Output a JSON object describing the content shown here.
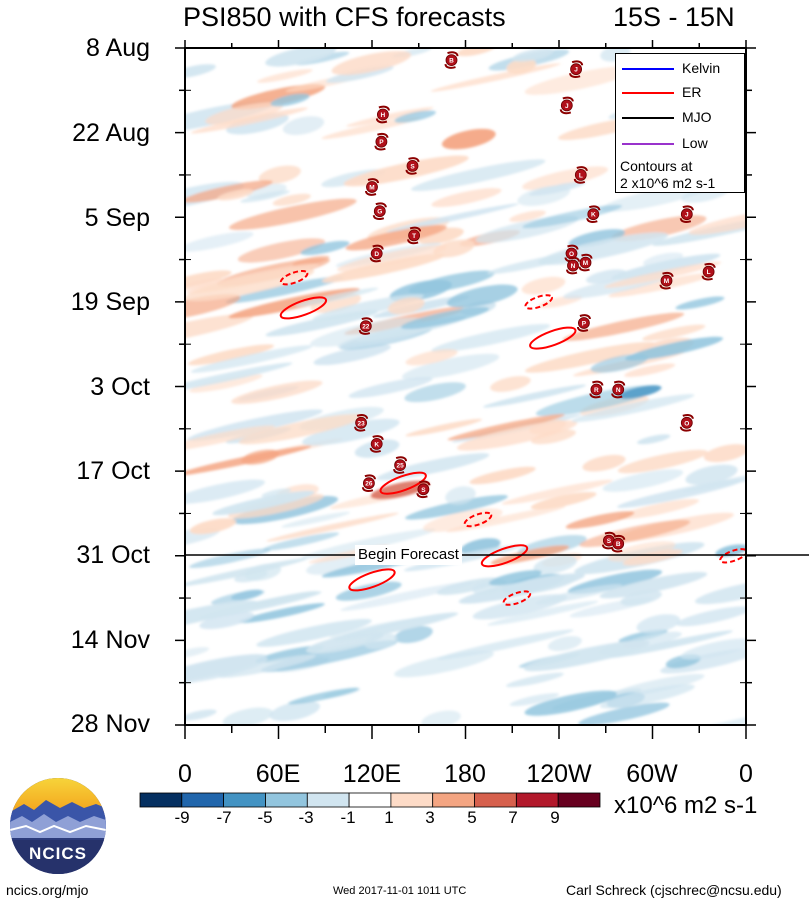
{
  "header": {
    "title": "PSI850 with CFS forecasts",
    "region": "15S - 15N"
  },
  "chart_data": {
    "type": "heatmap",
    "title": "PSI850 with CFS forecasts",
    "region": "15S - 15N",
    "ylabel_ticks": [
      "8 Aug",
      "22 Aug",
      "5 Sep",
      "19 Sep",
      "3 Oct",
      "17 Oct",
      "31 Oct",
      "14 Nov",
      "28 Nov"
    ],
    "xlabel_ticks": [
      "0",
      "60E",
      "120E",
      "180",
      "120W",
      "60W",
      "0"
    ],
    "xlim_deg_east": [
      0,
      360
    ],
    "time_range": [
      "8 Aug",
      "28 Nov"
    ],
    "forecast_start": "31 Oct",
    "forecast_label": "Begin Forecast",
    "colorbar": {
      "levels": [
        "-9",
        "-7",
        "-5",
        "-3",
        "-1",
        "1",
        "3",
        "5",
        "7",
        "9"
      ],
      "colors": [
        "#053061",
        "#2166ac",
        "#4393c3",
        "#92c5de",
        "#d1e5f0",
        "#ffffff",
        "#fddbc7",
        "#f4a582",
        "#d6604d",
        "#b2182b",
        "#67001f"
      ],
      "units": "x10^6 m2 s-1"
    },
    "legend": {
      "entries": [
        {
          "name": "Kelvin",
          "color": "#0000ff"
        },
        {
          "name": "ER",
          "color": "#ff0000"
        },
        {
          "name": "MJO",
          "color": "#000000"
        },
        {
          "name": "Low",
          "color": "#9932cc"
        }
      ],
      "note_line1": "Contours at",
      "note_line2": "2 x10^6 m2 s-1"
    },
    "storms": [
      {
        "label": "B",
        "lon": 171,
        "day": 2
      },
      {
        "label": "J",
        "lon": 251,
        "day": 3.5
      },
      {
        "label": "H",
        "lon": 127,
        "day": 11
      },
      {
        "label": "J",
        "lon": 245,
        "day": 9.5
      },
      {
        "label": "P",
        "lon": 126,
        "day": 15.5
      },
      {
        "label": "S",
        "lon": 146,
        "day": 19.5
      },
      {
        "label": "L",
        "lon": 254,
        "day": 21
      },
      {
        "label": "M",
        "lon": 120,
        "day": 23
      },
      {
        "label": "G",
        "lon": 125,
        "day": 27
      },
      {
        "label": "K",
        "lon": 262,
        "day": 27.5
      },
      {
        "label": "J",
        "lon": 322,
        "day": 27.5
      },
      {
        "label": "T",
        "lon": 147,
        "day": 31
      },
      {
        "label": "D",
        "lon": 123,
        "day": 34
      },
      {
        "label": "O",
        "lon": 248,
        "day": 34
      },
      {
        "label": "N",
        "lon": 249,
        "day": 36
      },
      {
        "label": "M",
        "lon": 257,
        "day": 35.5
      },
      {
        "label": "L",
        "lon": 336,
        "day": 37
      },
      {
        "label": "M",
        "lon": 309,
        "day": 38.5
      },
      {
        "label": "22",
        "lon": 116,
        "day": 46
      },
      {
        "label": "P",
        "lon": 256,
        "day": 45.5
      },
      {
        "label": "R",
        "lon": 264,
        "day": 56.5
      },
      {
        "label": "N",
        "lon": 278,
        "day": 56.5
      },
      {
        "label": "23",
        "lon": 113,
        "day": 62
      },
      {
        "label": "O",
        "lon": 322,
        "day": 62
      },
      {
        "label": "K",
        "lon": 123,
        "day": 65.5
      },
      {
        "label": "25",
        "lon": 138,
        "day": 69
      },
      {
        "label": "26",
        "lon": 118,
        "day": 72
      },
      {
        "label": "S",
        "lon": 153,
        "day": 73
      },
      {
        "label": "S",
        "lon": 272,
        "day": 81.5
      },
      {
        "label": "B",
        "lon": 278,
        "day": 82
      }
    ],
    "er_contours": [
      {
        "lon": 70,
        "day": 38,
        "style": "dashed"
      },
      {
        "lon": 76,
        "day": 43,
        "style": "solid"
      },
      {
        "lon": 227,
        "day": 42,
        "style": "dashed"
      },
      {
        "lon": 236,
        "day": 48,
        "style": "solid"
      },
      {
        "lon": 140,
        "day": 72,
        "style": "solid"
      },
      {
        "lon": 188,
        "day": 78,
        "style": "dashed"
      },
      {
        "lon": 205,
        "day": 84,
        "style": "solid"
      },
      {
        "lon": 120,
        "day": 88,
        "style": "solid"
      },
      {
        "lon": 213,
        "day": 91,
        "style": "dashed"
      },
      {
        "lon": 352,
        "day": 84,
        "style": "dashed"
      }
    ]
  },
  "footer": {
    "url": "ncics.org/mjo",
    "timestamp": "Wed 2017-11-01 1011 UTC",
    "author": "Carl Schreck (cjschrec@ncsu.edu)"
  },
  "logo": {
    "text": "NCICS"
  }
}
